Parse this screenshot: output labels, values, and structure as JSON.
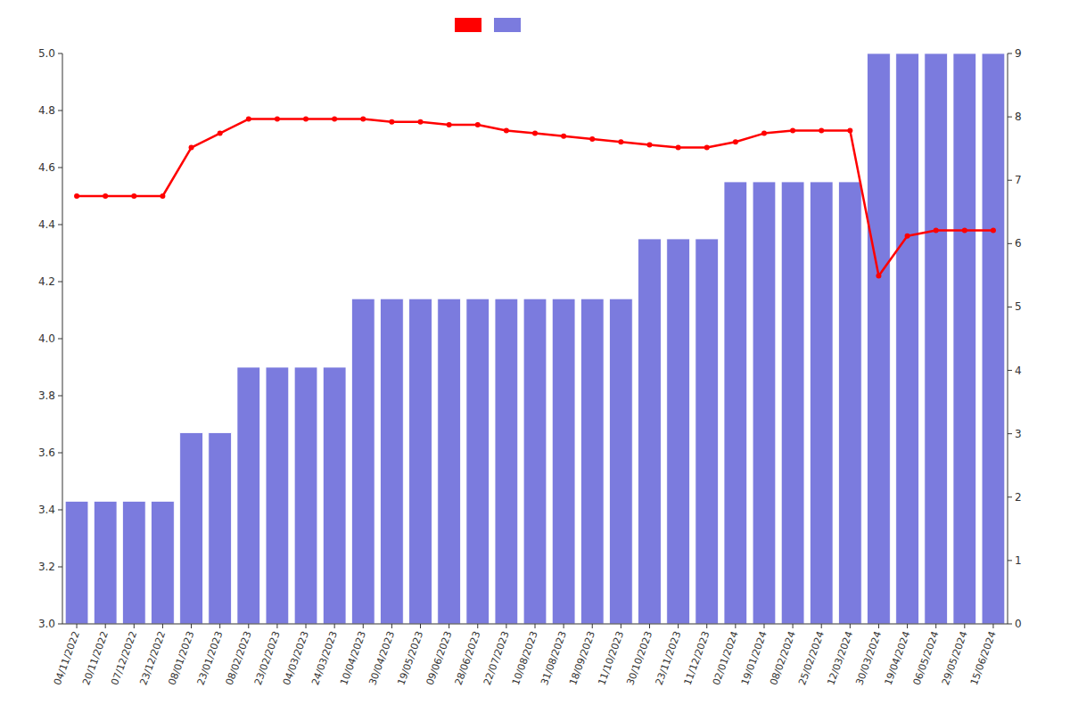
{
  "chart_data": {
    "type": "bar",
    "categories": [
      "04/11/2022",
      "20/11/2022",
      "07/12/2022",
      "23/12/2022",
      "08/01/2023",
      "23/01/2023",
      "08/02/2023",
      "23/02/2023",
      "04/03/2023",
      "24/03/2023",
      "10/04/2023",
      "30/04/2023",
      "19/05/2023",
      "09/06/2023",
      "28/06/2023",
      "22/07/2023",
      "10/08/2023",
      "31/08/2023",
      "18/09/2023",
      "11/10/2023",
      "30/10/2023",
      "23/11/2023",
      "11/12/2023",
      "02/01/2024",
      "19/01/2024",
      "08/02/2024",
      "25/02/2024",
      "12/03/2024",
      "30/03/2024",
      "19/04/2024",
      "06/05/2024",
      "29/05/2024",
      "15/06/2024"
    ],
    "series": [
      {
        "type": "bar",
        "color": "#7b7bde",
        "values": [
          3.43,
          3.43,
          3.43,
          3.43,
          3.67,
          3.67,
          3.9,
          3.9,
          3.9,
          3.9,
          4.14,
          4.14,
          4.14,
          4.14,
          4.14,
          4.14,
          4.14,
          4.14,
          4.14,
          4.14,
          4.35,
          4.35,
          4.35,
          4.55,
          4.55,
          4.55,
          4.55,
          4.55,
          5.0,
          5.0,
          5.0,
          5.0,
          5.0
        ]
      },
      {
        "type": "line",
        "color": "#ff0000",
        "marker": "circle",
        "values": [
          4.5,
          4.5,
          4.5,
          4.5,
          4.67,
          4.72,
          4.77,
          4.77,
          4.77,
          4.77,
          4.77,
          4.76,
          4.76,
          4.75,
          4.75,
          4.73,
          4.72,
          4.71,
          4.7,
          4.69,
          4.68,
          4.67,
          4.67,
          4.69,
          4.72,
          4.73,
          4.73,
          4.73,
          4.22,
          4.36,
          4.38,
          4.38,
          4.38
        ]
      }
    ],
    "ylim": [
      3.0,
      5.0
    ],
    "yticks": [
      {
        "value": 3,
        "label": "3.0"
      },
      3.2,
      3.4,
      3.6,
      3.8,
      {
        "value": 4,
        "label": "4.0"
      },
      4.2,
      4.4,
      4.6,
      4.8,
      {
        "value": 5,
        "label": "5.0"
      }
    ],
    "y2lim": [
      0,
      9
    ],
    "y2ticks": [
      0,
      1,
      2,
      3,
      4,
      5,
      6,
      7,
      8,
      9
    ],
    "grid": false,
    "legend": "top"
  }
}
